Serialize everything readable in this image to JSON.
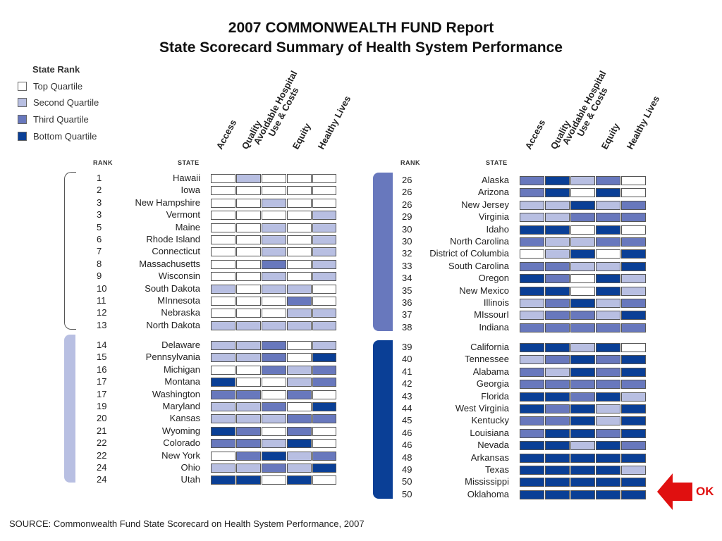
{
  "title_line1": "2007 COMMONWEALTH FUND Report",
  "title_line2": "State Scorecard Summary of Health System Performance",
  "legend": {
    "title": "State Rank",
    "items": [
      {
        "label": "Top Quartile",
        "color": "#ffffff"
      },
      {
        "label": "Second Quartile",
        "color": "#b8bfe2"
      },
      {
        "label": "Third Quartile",
        "color": "#6878bd"
      },
      {
        "label": "Bottom Quartile",
        "color": "#0a3f96"
      }
    ]
  },
  "headers": {
    "rank": "RANK",
    "state": "STATE"
  },
  "dimensions": [
    "Access",
    "Quality",
    "Avoidable Hospital Use & Costs",
    "Equity",
    "Healthy Lives"
  ],
  "quartile_colors": {
    "1": "#ffffff",
    "2": "#b8bfe2",
    "3": "#6878bd",
    "4": "#0a3f96"
  },
  "source": "SOURCE: Commonwealth Fund State Scorecard on Health System Performance, 2007",
  "annotation": {
    "label": "OK",
    "color": "#e01010"
  },
  "chart_data": {
    "type": "table",
    "value_meaning": "quartile 1=top, 4=bottom",
    "columns": [
      "Access",
      "Quality",
      "Avoidable Hospital Use & Costs",
      "Equity",
      "Healthy Lives"
    ],
    "rows": [
      {
        "rank": "1",
        "state": "Hawaii",
        "q": [
          1,
          2,
          1,
          1,
          1
        ]
      },
      {
        "rank": "2",
        "state": "Iowa",
        "q": [
          1,
          1,
          1,
          1,
          1
        ]
      },
      {
        "rank": "3",
        "state": "New Hampshire",
        "q": [
          1,
          1,
          2,
          1,
          1
        ]
      },
      {
        "rank": "3",
        "state": "Vermont",
        "q": [
          1,
          1,
          1,
          1,
          2
        ]
      },
      {
        "rank": "5",
        "state": "Maine",
        "q": [
          1,
          1,
          2,
          1,
          2
        ]
      },
      {
        "rank": "6",
        "state": "Rhode Island",
        "q": [
          1,
          1,
          2,
          1,
          2
        ]
      },
      {
        "rank": "7",
        "state": "Connecticut",
        "q": [
          1,
          1,
          2,
          1,
          2
        ]
      },
      {
        "rank": "8",
        "state": "Massachusetts",
        "q": [
          1,
          1,
          3,
          1,
          2
        ]
      },
      {
        "rank": "9",
        "state": "Wisconsin",
        "q": [
          1,
          1,
          2,
          1,
          2
        ]
      },
      {
        "rank": "10",
        "state": "South Dakota",
        "q": [
          2,
          1,
          2,
          2,
          1
        ]
      },
      {
        "rank": "11",
        "state": "MInnesota",
        "q": [
          1,
          1,
          1,
          3,
          1
        ]
      },
      {
        "rank": "12",
        "state": "Nebraska",
        "q": [
          1,
          1,
          1,
          2,
          2
        ]
      },
      {
        "rank": "13",
        "state": "North Dakota",
        "q": [
          2,
          2,
          2,
          2,
          2
        ]
      },
      {
        "rank": "14",
        "state": "Delaware",
        "q": [
          2,
          2,
          3,
          1,
          2
        ]
      },
      {
        "rank": "15",
        "state": "Pennsylvania",
        "q": [
          2,
          2,
          3,
          1,
          4
        ]
      },
      {
        "rank": "16",
        "state": "Michigan",
        "q": [
          1,
          1,
          3,
          2,
          3
        ]
      },
      {
        "rank": "17",
        "state": "Montana",
        "q": [
          4,
          1,
          1,
          2,
          3
        ]
      },
      {
        "rank": "17",
        "state": "Washington",
        "q": [
          3,
          3,
          1,
          3,
          1
        ]
      },
      {
        "rank": "19",
        "state": "Maryland",
        "q": [
          2,
          2,
          3,
          1,
          4
        ]
      },
      {
        "rank": "20",
        "state": "Kansas",
        "q": [
          2,
          2,
          2,
          3,
          3
        ]
      },
      {
        "rank": "21",
        "state": "Wyoming",
        "q": [
          4,
          3,
          1,
          3,
          1
        ]
      },
      {
        "rank": "22",
        "state": "Colorado",
        "q": [
          3,
          3,
          2,
          4,
          1
        ]
      },
      {
        "rank": "22",
        "state": "New York",
        "q": [
          1,
          3,
          4,
          2,
          3
        ]
      },
      {
        "rank": "24",
        "state": "Ohio",
        "q": [
          2,
          2,
          3,
          2,
          4
        ]
      },
      {
        "rank": "24",
        "state": "Utah",
        "q": [
          4,
          4,
          1,
          4,
          1
        ]
      },
      {
        "rank": "26",
        "state": "Alaska",
        "q": [
          3,
          4,
          2,
          3,
          1
        ]
      },
      {
        "rank": "26",
        "state": "Arizona",
        "q": [
          3,
          4,
          1,
          4,
          1
        ]
      },
      {
        "rank": "26",
        "state": "New Jersey",
        "q": [
          2,
          2,
          4,
          2,
          3
        ]
      },
      {
        "rank": "29",
        "state": "Virginia",
        "q": [
          2,
          2,
          3,
          3,
          3
        ]
      },
      {
        "rank": "30",
        "state": "Idaho",
        "q": [
          4,
          4,
          1,
          4,
          1
        ]
      },
      {
        "rank": "30",
        "state": "North Carolina",
        "q": [
          3,
          2,
          2,
          3,
          3
        ]
      },
      {
        "rank": "32",
        "state": "District of Columbia",
        "q": [
          1,
          2,
          4,
          1,
          4
        ]
      },
      {
        "rank": "33",
        "state": "South Carolina",
        "q": [
          3,
          3,
          2,
          2,
          4
        ]
      },
      {
        "rank": "34",
        "state": "Oregon",
        "q": [
          4,
          3,
          1,
          4,
          2
        ]
      },
      {
        "rank": "35",
        "state": "New Mexico",
        "q": [
          4,
          4,
          1,
          4,
          2
        ]
      },
      {
        "rank": "36",
        "state": "Illinois",
        "q": [
          2,
          3,
          4,
          2,
          3
        ]
      },
      {
        "rank": "37",
        "state": "MIssourI",
        "q": [
          2,
          3,
          3,
          2,
          4
        ]
      },
      {
        "rank": "38",
        "state": "Indiana",
        "q": [
          3,
          3,
          3,
          3,
          3
        ]
      },
      {
        "rank": "39",
        "state": "California",
        "q": [
          4,
          4,
          2,
          4,
          1
        ]
      },
      {
        "rank": "40",
        "state": "Tennessee",
        "q": [
          2,
          3,
          4,
          3,
          4
        ]
      },
      {
        "rank": "41",
        "state": "Alabama",
        "q": [
          3,
          2,
          4,
          3,
          4
        ]
      },
      {
        "rank": "42",
        "state": "Georgia",
        "q": [
          3,
          3,
          3,
          3,
          3
        ]
      },
      {
        "rank": "43",
        "state": "Florida",
        "q": [
          4,
          4,
          3,
          4,
          2
        ]
      },
      {
        "rank": "44",
        "state": "West Virginia",
        "q": [
          4,
          3,
          4,
          2,
          4
        ]
      },
      {
        "rank": "45",
        "state": "Kentucky",
        "q": [
          3,
          3,
          4,
          2,
          4
        ]
      },
      {
        "rank": "46",
        "state": "Louisiana",
        "q": [
          3,
          4,
          4,
          3,
          4
        ]
      },
      {
        "rank": "46",
        "state": "Nevada",
        "q": [
          4,
          4,
          2,
          4,
          3
        ]
      },
      {
        "rank": "48",
        "state": "Arkansas",
        "q": [
          4,
          4,
          4,
          4,
          4
        ]
      },
      {
        "rank": "49",
        "state": "Texas",
        "q": [
          4,
          4,
          4,
          4,
          2
        ]
      },
      {
        "rank": "50",
        "state": "Mississippi",
        "q": [
          4,
          4,
          4,
          4,
          4
        ]
      },
      {
        "rank": "50",
        "state": "Oklahoma",
        "q": [
          4,
          4,
          4,
          4,
          4
        ]
      }
    ]
  }
}
